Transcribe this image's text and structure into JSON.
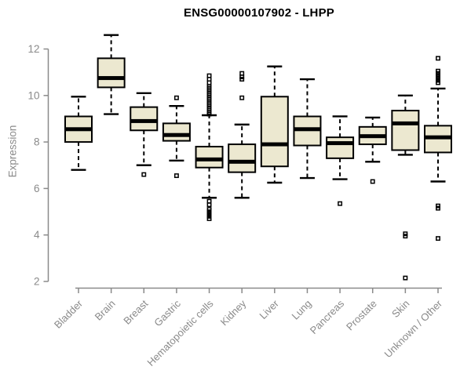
{
  "page": {
    "background": "#ffffff"
  },
  "colors": {
    "axis": "#8a8a8a",
    "tick_label": "#8a8a8a",
    "box_fill": "#ece8d0",
    "box_border": "#000000",
    "median": "#000000",
    "whisker": "#000000",
    "outlier": "#000000",
    "title": "#000000"
  },
  "chart_data": {
    "type": "boxplot",
    "title": "ENSG00000107902 - LHPP",
    "xlabel": "",
    "ylabel": "Expression",
    "ylim": [
      2,
      12.8
    ],
    "yticks": [
      2,
      4,
      6,
      8,
      10,
      12
    ],
    "grid": false,
    "legend": "none",
    "x_tick_rotation_deg": 45,
    "categories": [
      "Bladder",
      "Brain",
      "Breast",
      "Gastric",
      "Hematopoietic cells",
      "Kidney",
      "Liver",
      "Lung",
      "Pancreas",
      "Prostate",
      "Skin",
      "Unknown / Other"
    ],
    "series": [
      {
        "name": "Bladder",
        "low": 6.8,
        "q1": 8.0,
        "median": 8.55,
        "q3": 9.1,
        "high": 9.95,
        "outliers": []
      },
      {
        "name": "Brain",
        "low": 9.2,
        "q1": 10.35,
        "median": 10.75,
        "q3": 11.6,
        "high": 12.6,
        "outliers": []
      },
      {
        "name": "Breast",
        "low": 7.0,
        "q1": 8.5,
        "median": 8.9,
        "q3": 9.5,
        "high": 10.1,
        "outliers": [
          6.6
        ]
      },
      {
        "name": "Gastric",
        "low": 7.2,
        "q1": 8.05,
        "median": 8.3,
        "q3": 8.8,
        "high": 9.55,
        "outliers": [
          9.9,
          6.55
        ]
      },
      {
        "name": "Hematopoietic cells",
        "low": 5.6,
        "q1": 6.9,
        "median": 7.25,
        "q3": 7.8,
        "high": 9.15,
        "outliers": [
          10.85,
          10.7,
          10.55,
          10.4,
          10.32,
          10.24,
          10.16,
          10.08,
          10.0,
          9.92,
          9.84,
          9.76,
          9.68,
          9.6,
          9.52,
          9.44,
          9.36,
          9.28,
          9.2,
          5.45,
          5.3,
          5.1,
          5.0,
          4.9,
          4.8,
          4.7
        ]
      },
      {
        "name": "Kidney",
        "low": 5.6,
        "q1": 6.7,
        "median": 7.15,
        "q3": 7.9,
        "high": 8.75,
        "outliers": [
          10.95,
          10.8,
          10.7,
          9.9
        ]
      },
      {
        "name": "Liver",
        "low": 6.25,
        "q1": 6.95,
        "median": 7.9,
        "q3": 9.95,
        "high": 11.25,
        "outliers": []
      },
      {
        "name": "Lung",
        "low": 6.45,
        "q1": 7.85,
        "median": 8.55,
        "q3": 9.1,
        "high": 10.7,
        "outliers": []
      },
      {
        "name": "Pancreas",
        "low": 6.4,
        "q1": 7.3,
        "median": 7.95,
        "q3": 8.2,
        "high": 9.1,
        "outliers": [
          5.35
        ]
      },
      {
        "name": "Prostate",
        "low": 7.15,
        "q1": 7.9,
        "median": 8.25,
        "q3": 8.65,
        "high": 9.05,
        "outliers": [
          6.3
        ]
      },
      {
        "name": "Skin",
        "low": 7.45,
        "q1": 7.65,
        "median": 8.8,
        "q3": 9.35,
        "high": 10.0,
        "outliers": [
          4.05,
          3.95,
          2.15
        ]
      },
      {
        "name": "Unknown / Other",
        "low": 6.3,
        "q1": 7.55,
        "median": 8.2,
        "q3": 8.7,
        "high": 10.3,
        "outliers": [
          11.6,
          11.05,
          10.95,
          10.85,
          10.75,
          10.65,
          10.55,
          5.25,
          5.15,
          3.85
        ]
      }
    ]
  }
}
